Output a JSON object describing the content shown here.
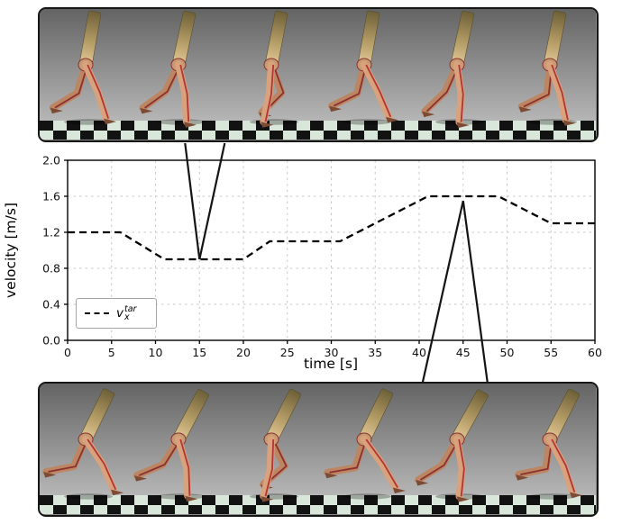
{
  "figure": {
    "top_panel": {
      "content": "six snapshots of a musculoskeletal humanoid walking at the slow target velocity",
      "frame_count": 6
    },
    "bottom_panel": {
      "content": "six snapshots of a musculoskeletal humanoid walking at the fast target velocity",
      "frame_count": 6
    }
  },
  "chart_data": {
    "type": "line",
    "title": "",
    "xlabel": "time [s]",
    "ylabel": "velocity [m/s]",
    "xlim": [
      0,
      60
    ],
    "ylim": [
      0.0,
      2.0
    ],
    "xticks": [
      0,
      5,
      10,
      15,
      20,
      25,
      30,
      35,
      40,
      45,
      50,
      55,
      60
    ],
    "xtick_labels": [
      "0",
      "5",
      "10",
      "15",
      "20",
      "25",
      "30",
      "35",
      "40",
      "45",
      "50",
      "55",
      "60"
    ],
    "yticks": [
      0.0,
      0.4,
      0.8,
      1.2,
      1.6,
      2.0
    ],
    "ytick_labels": [
      "0.0",
      "0.4",
      "0.8",
      "1.2",
      "1.6",
      "2.0"
    ],
    "grid": true,
    "legend": {
      "position": "lower left",
      "symbol": "v",
      "subscript": "x",
      "superscript": "tar",
      "full_label": "v_x^tar",
      "line_style": "dashed"
    },
    "series": [
      {
        "name": "target forward velocity",
        "style": "dashed",
        "color": "#000000",
        "x": [
          0,
          6,
          11,
          20,
          23,
          31,
          41,
          49,
          55,
          60
        ],
        "y": [
          1.2,
          1.2,
          0.9,
          0.9,
          1.1,
          1.1,
          1.6,
          1.6,
          1.3,
          1.3
        ]
      }
    ],
    "annotations": [
      {
        "type": "callout-to-top-panel",
        "t": 15,
        "v": 0.9
      },
      {
        "type": "callout-to-bottom-panel",
        "t": 45,
        "v": 1.55
      }
    ]
  }
}
